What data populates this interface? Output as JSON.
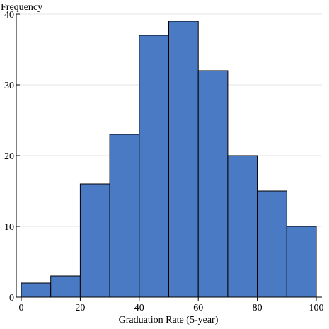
{
  "chart_data": {
    "type": "bar",
    "title": "",
    "ylabel": "Frequency",
    "xlabel": "Graduation Rate (5-year)",
    "bin_edges": [
      0,
      10,
      20,
      30,
      40,
      50,
      60,
      70,
      80,
      90,
      100
    ],
    "values": [
      2,
      3,
      16,
      23,
      37,
      39,
      32,
      20,
      15,
      10
    ],
    "xlim": [
      0,
      100
    ],
    "ylim": [
      0,
      40
    ],
    "x_ticks": [
      0,
      20,
      40,
      60,
      80,
      100
    ],
    "y_ticks": [
      0,
      10,
      20,
      30,
      40
    ],
    "grid": "horizontal",
    "colors": {
      "bar_fill": "#4a7ac3",
      "bar_stroke": "#000000",
      "grid": "#e4e4e4"
    }
  }
}
